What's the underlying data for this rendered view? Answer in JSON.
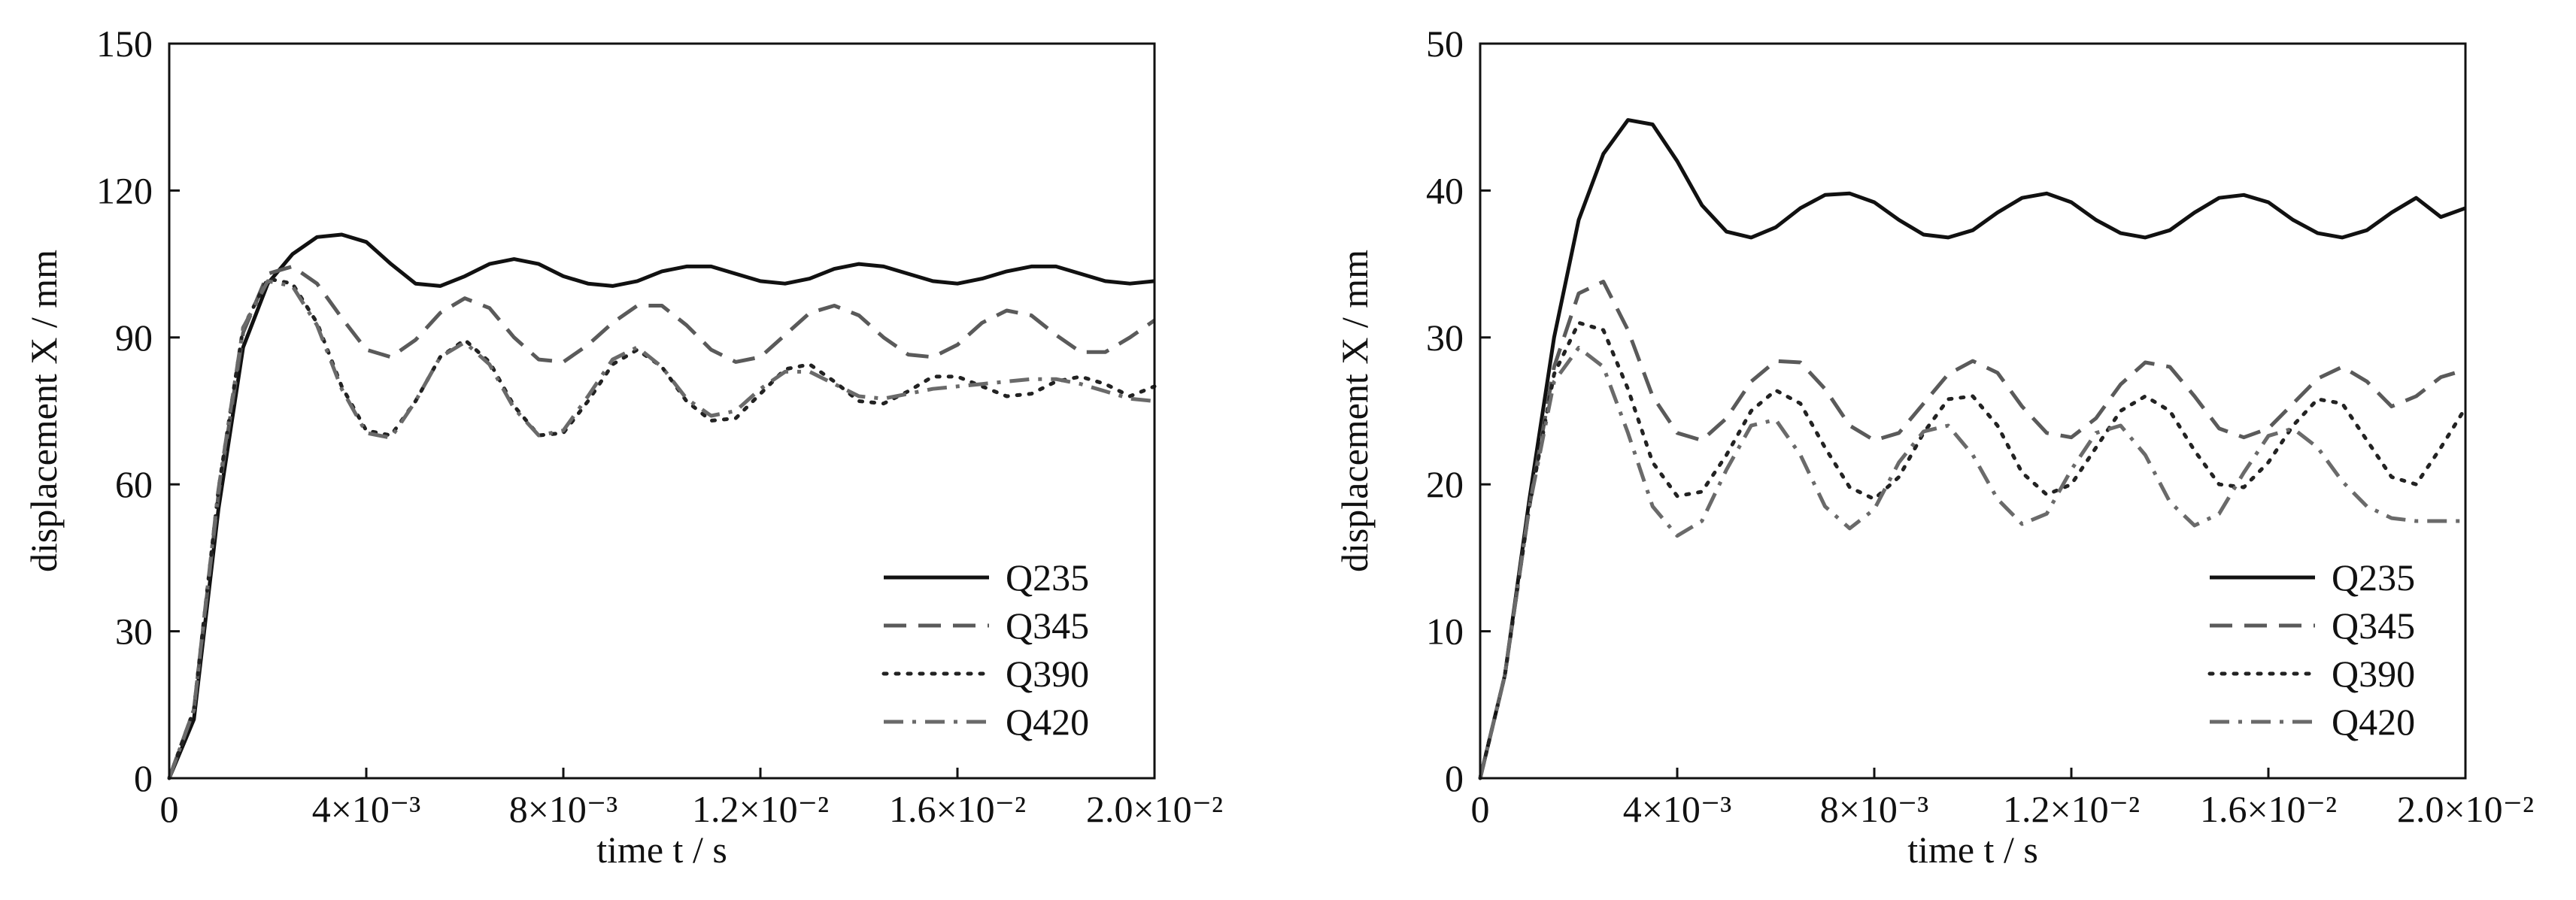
{
  "chart_data": [
    {
      "type": "line",
      "xlabel": "time t / s",
      "ylabel": "displacement X / mm",
      "xlim": [
        0,
        0.02
      ],
      "ylim": [
        0,
        150
      ],
      "xticks": [
        {
          "value": 0,
          "label": "0"
        },
        {
          "value": 0.004,
          "label": "4×10⁻³"
        },
        {
          "value": 0.008,
          "label": "8×10⁻³"
        },
        {
          "value": 0.012,
          "label": "1.2×10⁻²"
        },
        {
          "value": 0.016,
          "label": "1.6×10⁻²"
        },
        {
          "value": 0.02,
          "label": "2.0×10⁻²"
        }
      ],
      "yticks": [
        {
          "value": 0,
          "label": "0"
        },
        {
          "value": 30,
          "label": "30"
        },
        {
          "value": 60,
          "label": "60"
        },
        {
          "value": 90,
          "label": "90"
        },
        {
          "value": 120,
          "label": "120"
        },
        {
          "value": 150,
          "label": "150"
        }
      ],
      "legend_position": "lower-right",
      "grid": false,
      "series": [
        {
          "name": "Q235",
          "style": "solid",
          "color": "#111111",
          "x": [
            0,
            0.0005,
            0.001,
            0.0015,
            0.002,
            0.0025,
            0.003,
            0.0035,
            0.004,
            0.0045,
            0.005,
            0.0055,
            0.006,
            0.0065,
            0.007,
            0.0075,
            0.008,
            0.0085,
            0.009,
            0.0095,
            0.01,
            0.0105,
            0.011,
            0.0115,
            0.012,
            0.0125,
            0.013,
            0.0135,
            0.014,
            0.0145,
            0.015,
            0.0155,
            0.016,
            0.0165,
            0.017,
            0.0175,
            0.018,
            0.0185,
            0.019,
            0.0195,
            0.02
          ],
          "y": [
            0,
            12,
            55,
            88,
            101,
            107,
            110.5,
            111,
            109.5,
            105,
            101,
            100.5,
            102.5,
            105,
            106,
            105,
            102.5,
            101,
            100.5,
            101.5,
            103.5,
            104.5,
            104.5,
            103,
            101.5,
            101,
            102,
            104,
            105,
            104.5,
            103,
            101.5,
            101,
            102,
            103.5,
            104.5,
            104.5,
            103,
            101.5,
            101,
            101.5
          ]
        },
        {
          "name": "Q345",
          "style": "dashed",
          "color": "#5a5a5a",
          "x": [
            0,
            0.0005,
            0.001,
            0.0015,
            0.002,
            0.0025,
            0.003,
            0.0035,
            0.004,
            0.0045,
            0.005,
            0.0055,
            0.006,
            0.0065,
            0.007,
            0.0075,
            0.008,
            0.0085,
            0.009,
            0.0095,
            0.01,
            0.0105,
            0.011,
            0.0115,
            0.012,
            0.0125,
            0.013,
            0.0135,
            0.014,
            0.0145,
            0.015,
            0.0155,
            0.016,
            0.0165,
            0.017,
            0.0175,
            0.018,
            0.0185,
            0.019,
            0.0195,
            0.02
          ],
          "y": [
            0,
            14,
            58,
            91,
            103,
            104.5,
            101,
            94,
            87.5,
            86,
            89.5,
            95,
            98,
            96,
            90,
            85.5,
            85,
            88.5,
            93,
            96.5,
            96.5,
            92.5,
            87.5,
            85,
            86,
            90.5,
            95,
            96.5,
            94.5,
            90,
            86.5,
            86,
            88.5,
            93,
            95.5,
            94.5,
            90.5,
            87,
            87,
            90,
            93.5
          ]
        },
        {
          "name": "Q390",
          "style": "dotted",
          "color": "#222222",
          "x": [
            0,
            0.0005,
            0.001,
            0.0015,
            0.002,
            0.0025,
            0.003,
            0.0035,
            0.004,
            0.0045,
            0.005,
            0.0055,
            0.006,
            0.0065,
            0.007,
            0.0075,
            0.008,
            0.0085,
            0.009,
            0.0095,
            0.01,
            0.0105,
            0.011,
            0.0115,
            0.012,
            0.0125,
            0.013,
            0.0135,
            0.014,
            0.0145,
            0.015,
            0.0155,
            0.016,
            0.0165,
            0.017,
            0.0175,
            0.018,
            0.0185,
            0.019,
            0.0195,
            0.02
          ],
          "y": [
            0,
            14,
            59,
            92,
            102,
            101,
            93,
            80,
            71,
            70,
            77,
            86,
            89.5,
            85,
            76,
            70,
            70.5,
            77,
            84.5,
            87.5,
            84,
            77,
            73,
            73.5,
            78.5,
            83.5,
            84.5,
            81,
            77,
            76.5,
            79,
            82,
            82,
            80,
            78,
            78.5,
            81,
            82,
            80.5,
            78,
            80
          ]
        },
        {
          "name": "Q420",
          "style": "dashdot",
          "color": "#6a6a6a",
          "x": [
            0,
            0.0005,
            0.001,
            0.0015,
            0.002,
            0.0025,
            0.003,
            0.0035,
            0.004,
            0.0045,
            0.005,
            0.0055,
            0.006,
            0.0065,
            0.007,
            0.0075,
            0.008,
            0.0085,
            0.009,
            0.0095,
            0.01,
            0.0105,
            0.011,
            0.0115,
            0.012,
            0.0125,
            0.013,
            0.0135,
            0.014,
            0.0145,
            0.015,
            0.0155,
            0.016,
            0.0165,
            0.017,
            0.0175,
            0.018,
            0.0185,
            0.019,
            0.0195,
            0.02
          ],
          "y": [
            0,
            14,
            59,
            92,
            101.5,
            100.5,
            92.5,
            79.5,
            70.5,
            69.5,
            77,
            86,
            89,
            84.5,
            75.5,
            70,
            71,
            78,
            85.5,
            88,
            84,
            77.5,
            74,
            75,
            79.5,
            83,
            83,
            80.5,
            78,
            77.5,
            78.5,
            79.5,
            80,
            80.5,
            81,
            81.5,
            81.5,
            80.5,
            79,
            77.5,
            77
          ]
        }
      ]
    },
    {
      "type": "line",
      "xlabel": "time t / s",
      "ylabel": "displacement X / mm",
      "xlim": [
        0,
        0.02
      ],
      "ylim": [
        0,
        50
      ],
      "xticks": [
        {
          "value": 0,
          "label": "0"
        },
        {
          "value": 0.004,
          "label": "4×10⁻³"
        },
        {
          "value": 0.008,
          "label": "8×10⁻³"
        },
        {
          "value": 0.012,
          "label": "1.2×10⁻²"
        },
        {
          "value": 0.016,
          "label": "1.6×10⁻²"
        },
        {
          "value": 0.02,
          "label": "2.0×10⁻²"
        }
      ],
      "yticks": [
        {
          "value": 0,
          "label": "0"
        },
        {
          "value": 10,
          "label": "10"
        },
        {
          "value": 20,
          "label": "20"
        },
        {
          "value": 30,
          "label": "30"
        },
        {
          "value": 40,
          "label": "40"
        },
        {
          "value": 50,
          "label": "50"
        }
      ],
      "legend_position": "lower-right",
      "grid": false,
      "series": [
        {
          "name": "Q235",
          "style": "solid",
          "color": "#111111",
          "x": [
            0,
            0.0005,
            0.001,
            0.0015,
            0.002,
            0.0025,
            0.003,
            0.0035,
            0.004,
            0.0045,
            0.005,
            0.0055,
            0.006,
            0.0065,
            0.007,
            0.0075,
            0.008,
            0.0085,
            0.009,
            0.0095,
            0.01,
            0.0105,
            0.011,
            0.0115,
            0.012,
            0.0125,
            0.013,
            0.0135,
            0.014,
            0.0145,
            0.015,
            0.0155,
            0.016,
            0.0165,
            0.017,
            0.0175,
            0.018,
            0.0185,
            0.019,
            0.0195,
            0.02
          ],
          "y": [
            0,
            7,
            19,
            30,
            38,
            42.5,
            44.8,
            44.5,
            42,
            39,
            37.2,
            36.8,
            37.5,
            38.8,
            39.7,
            39.8,
            39.2,
            38,
            37,
            36.8,
            37.3,
            38.5,
            39.5,
            39.8,
            39.2,
            38,
            37.1,
            36.8,
            37.3,
            38.5,
            39.5,
            39.7,
            39.2,
            38,
            37.1,
            36.8,
            37.3,
            38.5,
            39.5,
            38.2,
            38.8
          ]
        },
        {
          "name": "Q345",
          "style": "dashed",
          "color": "#5a5a5a",
          "x": [
            0,
            0.0005,
            0.001,
            0.0015,
            0.002,
            0.0025,
            0.003,
            0.0035,
            0.004,
            0.0045,
            0.005,
            0.0055,
            0.006,
            0.0065,
            0.007,
            0.0075,
            0.008,
            0.0085,
            0.009,
            0.0095,
            0.01,
            0.0105,
            0.011,
            0.0115,
            0.012,
            0.0125,
            0.013,
            0.0135,
            0.014,
            0.0145,
            0.015,
            0.0155,
            0.016,
            0.0165,
            0.017,
            0.0175,
            0.018,
            0.0185,
            0.019,
            0.0195,
            0.02
          ],
          "y": [
            0,
            7,
            18.5,
            28,
            33,
            33.8,
            30.5,
            26,
            23.5,
            23,
            24.5,
            27,
            28.4,
            28.3,
            26.5,
            24,
            23,
            23.5,
            25.5,
            27.5,
            28.4,
            27.6,
            25.3,
            23.5,
            23.2,
            24.5,
            26.8,
            28.3,
            28,
            26,
            23.8,
            23.2,
            23.8,
            25.5,
            27.2,
            28,
            27,
            25.3,
            26,
            27.3,
            27.8
          ]
        },
        {
          "name": "Q390",
          "style": "dotted",
          "color": "#222222",
          "x": [
            0,
            0.0005,
            0.001,
            0.0015,
            0.002,
            0.0025,
            0.003,
            0.0035,
            0.004,
            0.0045,
            0.005,
            0.0055,
            0.006,
            0.0065,
            0.007,
            0.0075,
            0.008,
            0.0085,
            0.009,
            0.0095,
            0.01,
            0.0105,
            0.011,
            0.0115,
            0.012,
            0.0125,
            0.013,
            0.0135,
            0.014,
            0.0145,
            0.015,
            0.0155,
            0.016,
            0.0165,
            0.017,
            0.0175,
            0.018,
            0.0185,
            0.019,
            0.0195,
            0.02
          ],
          "y": [
            0,
            7,
            18.5,
            27.5,
            31,
            30.5,
            26.5,
            21.5,
            19.2,
            19.5,
            22,
            25,
            26.4,
            25.5,
            22.5,
            19.8,
            19,
            20.5,
            23.5,
            25.8,
            26,
            24,
            20.8,
            19.3,
            20,
            22.5,
            25,
            26,
            25,
            22.3,
            20,
            19.8,
            21.5,
            24,
            25.8,
            25.5,
            23,
            20.5,
            20,
            22.5,
            25.2
          ]
        },
        {
          "name": "Q420",
          "style": "dashdot",
          "color": "#6a6a6a",
          "x": [
            0,
            0.0005,
            0.001,
            0.0015,
            0.002,
            0.0025,
            0.003,
            0.0035,
            0.004,
            0.0045,
            0.005,
            0.0055,
            0.006,
            0.0065,
            0.007,
            0.0075,
            0.008,
            0.0085,
            0.009,
            0.0095,
            0.01,
            0.0105,
            0.011,
            0.0115,
            0.012,
            0.0125,
            0.013,
            0.0135,
            0.014,
            0.0145,
            0.015,
            0.0155,
            0.016,
            0.0165,
            0.017,
            0.0175,
            0.018,
            0.0185,
            0.019,
            0.0195,
            0.02
          ],
          "y": [
            0,
            7,
            18.5,
            27,
            29.3,
            28,
            23.5,
            18.5,
            16.5,
            17.5,
            21,
            24,
            24.4,
            22,
            18.5,
            17,
            18.3,
            21.5,
            23.6,
            24,
            22,
            19,
            17.3,
            18,
            21,
            23.5,
            24,
            22,
            18.8,
            17.2,
            18,
            20.8,
            23.3,
            23.8,
            22.5,
            20.2,
            18.5,
            17.7,
            17.5,
            17.5,
            17.5
          ]
        }
      ]
    }
  ]
}
